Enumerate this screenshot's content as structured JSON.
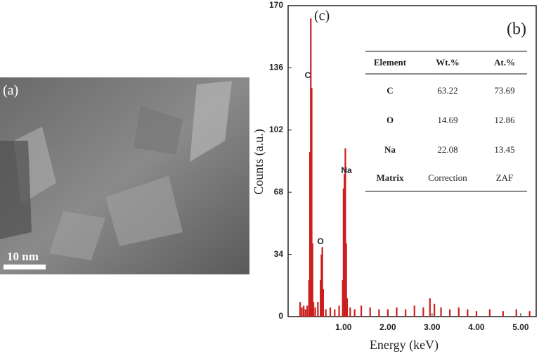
{
  "image": {
    "label": "(a)",
    "scale_bar": "10 nm"
  },
  "chart_data": {
    "type": "bar",
    "panel_label": "(c)",
    "x_label": "Energy (keV)",
    "y_label": "Counts (a.u.)",
    "color": "#cc1f1f",
    "x": [
      0.02,
      0.06,
      0.1,
      0.14,
      0.18,
      0.22,
      0.24,
      0.26,
      0.28,
      0.3,
      0.32,
      0.36,
      0.42,
      0.48,
      0.5,
      0.52,
      0.54,
      0.6,
      0.7,
      0.8,
      0.9,
      0.98,
      1.0,
      1.02,
      1.04,
      1.06,
      1.08,
      1.15,
      1.25,
      1.4,
      1.6,
      1.8,
      2.0,
      2.2,
      2.4,
      2.6,
      2.8,
      2.95,
      3.05,
      3.2,
      3.4,
      3.6,
      3.8,
      4.0,
      4.3,
      4.6,
      4.9,
      5.2
    ],
    "values": [
      8,
      5,
      6,
      4,
      6,
      20,
      90,
      163,
      125,
      40,
      8,
      5,
      8,
      20,
      34,
      38,
      15,
      4,
      5,
      4,
      6,
      20,
      70,
      78,
      92,
      40,
      10,
      5,
      4,
      6,
      5,
      4,
      4,
      5,
      4,
      6,
      5,
      10,
      7,
      5,
      4,
      5,
      4,
      3,
      4,
      3,
      4,
      3
    ],
    "xlim": [
      -0.25,
      5.35
    ],
    "ylim": [
      0,
      170
    ],
    "xticks": [
      {
        "value": 1,
        "label": "1.00"
      },
      {
        "value": 2,
        "label": "2.00"
      },
      {
        "value": 3,
        "label": "3.00"
      },
      {
        "value": 4,
        "label": "4.00"
      },
      {
        "value": 5,
        "label": "5.00"
      }
    ],
    "yticks": [
      0,
      34,
      68,
      102,
      136,
      170
    ],
    "annotations": [
      "C",
      "O",
      "Na"
    ],
    "inset_table": {
      "label": "(b)",
      "columns": [
        "Element",
        "Wt.%",
        "At.%"
      ],
      "rows": [
        [
          "C",
          "63.22",
          "73.69"
        ],
        [
          "O",
          "14.69",
          "12.86"
        ],
        [
          "Na",
          "22.08",
          "13.45"
        ],
        [
          "Matrix",
          "Correction",
          "ZAF"
        ]
      ]
    }
  }
}
